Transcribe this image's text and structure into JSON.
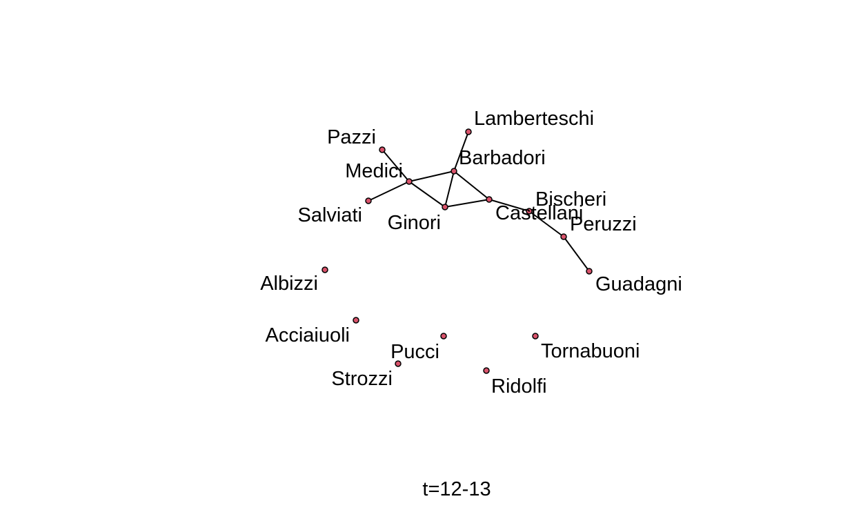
{
  "diagram": {
    "caption": "t=12-13",
    "node_fill": "#d9536b",
    "node_stroke": "#000000",
    "edge_color": "#000000",
    "nodes": [
      {
        "id": "Lamberteschi",
        "label": "Lamberteschi"
      },
      {
        "id": "Pazzi",
        "label": "Pazzi"
      },
      {
        "id": "Barbadori",
        "label": "Barbadori"
      },
      {
        "id": "Medici",
        "label": "Medici"
      },
      {
        "id": "Salviati",
        "label": "Salviati"
      },
      {
        "id": "Ginori",
        "label": "Ginori"
      },
      {
        "id": "Castellani",
        "label": "Castellani"
      },
      {
        "id": "Bischeri",
        "label": "Bischeri"
      },
      {
        "id": "Peruzzi",
        "label": "Peruzzi"
      },
      {
        "id": "Guadagni",
        "label": "Guadagni"
      },
      {
        "id": "Albizzi",
        "label": "Albizzi"
      },
      {
        "id": "Acciaiuoli",
        "label": "Acciaiuoli"
      },
      {
        "id": "Pucci",
        "label": "Pucci"
      },
      {
        "id": "Tornabuoni",
        "label": "Tornabuoni"
      },
      {
        "id": "Strozzi",
        "label": "Strozzi"
      },
      {
        "id": "Ridolfi",
        "label": "Ridolfi"
      }
    ],
    "edges": [
      [
        "Pazzi",
        "Medici"
      ],
      [
        "Salviati",
        "Medici"
      ],
      [
        "Medici",
        "Barbadori"
      ],
      [
        "Medici",
        "Ginori"
      ],
      [
        "Lamberteschi",
        "Barbadori"
      ],
      [
        "Barbadori",
        "Ginori"
      ],
      [
        "Barbadori",
        "Castellani"
      ],
      [
        "Ginori",
        "Castellani"
      ],
      [
        "Castellani",
        "Bischeri"
      ],
      [
        "Bischeri",
        "Peruzzi"
      ],
      [
        "Peruzzi",
        "Guadagni"
      ]
    ]
  }
}
